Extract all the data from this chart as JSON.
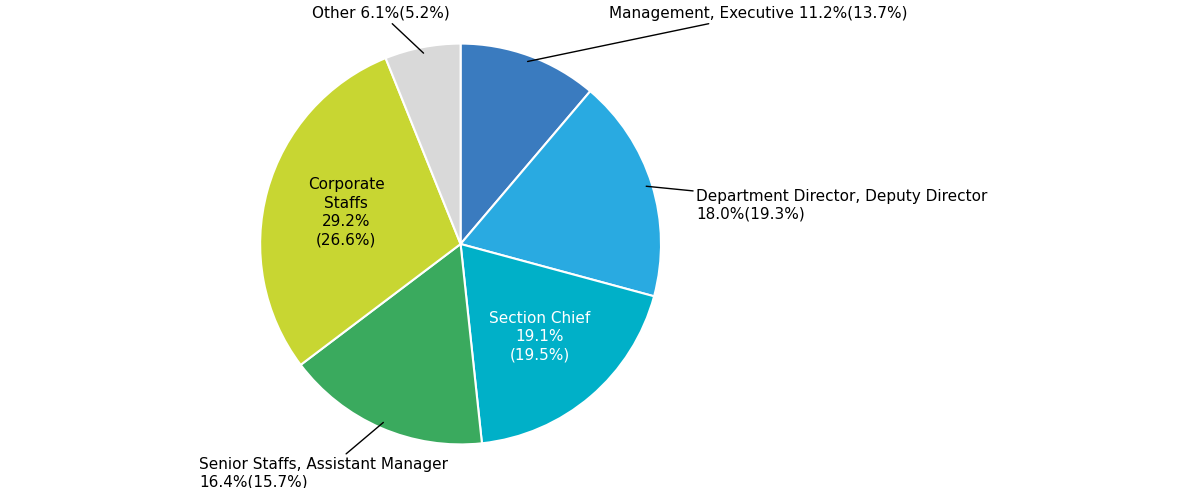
{
  "slices": [
    {
      "label": "Management, Executive",
      "pct": "11.2%",
      "secondary": "(13.7%)",
      "value": 11.2,
      "color": "#3a7bbf",
      "text_color": "black",
      "text_inside": false
    },
    {
      "label": "Department Director, Deputy Director",
      "pct": "18.0%",
      "secondary": "(19.3%)",
      "value": 18.0,
      "color": "#29aae1",
      "text_color": "black",
      "text_inside": false
    },
    {
      "label": "Section Chief",
      "pct": "19.1%",
      "secondary": "(19.5%)",
      "value": 19.1,
      "color": "#00b0c8",
      "text_color": "white",
      "text_inside": true
    },
    {
      "label": "Senior Staffs, Assistant Manager",
      "pct": "16.4%",
      "secondary": "(15.7%)",
      "value": 16.4,
      "color": "#3aaa5e",
      "text_color": "black",
      "text_inside": false
    },
    {
      "label": "Corporate\nStaffs",
      "pct": "29.2%",
      "secondary": "(26.6%)",
      "value": 29.2,
      "color": "#c8d632",
      "text_color": "black",
      "text_inside": true
    },
    {
      "label": "Other",
      "pct": "6.1%",
      "secondary": "(5.2%)",
      "value": 6.1,
      "color": "#d9d9d9",
      "text_color": "black",
      "text_inside": false
    }
  ],
  "figsize": [
    12.0,
    4.88
  ],
  "dpi": 100,
  "background_color": "#ffffff",
  "fontsize_outside": 11,
  "fontsize_inside": 11
}
